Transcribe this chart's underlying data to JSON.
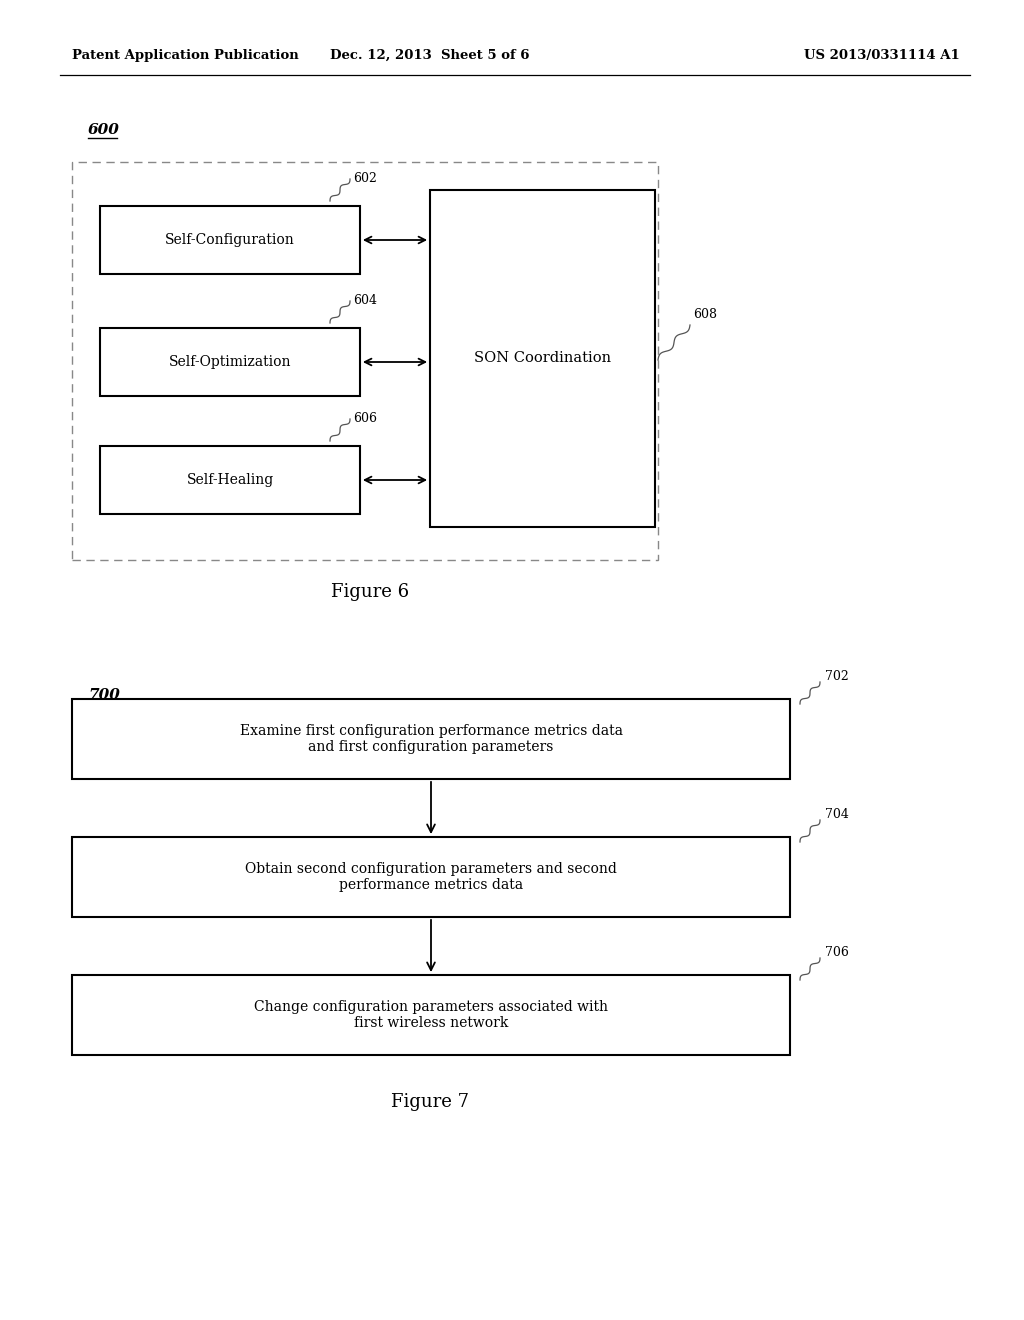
{
  "bg_color": "#ffffff",
  "header_left": "Patent Application Publication",
  "header_mid": "Dec. 12, 2013  Sheet 5 of 6",
  "header_right": "US 2013/0331114 A1",
  "fig6_label": "600",
  "fig6_caption": "Figure 6",
  "fig6_son_label": "SON Coordination",
  "fig6_ref_608": "608",
  "fig6_boxes": [
    {
      "label": "Self-Configuration",
      "ref": "602"
    },
    {
      "label": "Self-Optimization",
      "ref": "604"
    },
    {
      "label": "Self-Healing",
      "ref": "606"
    }
  ],
  "fig7_label": "700",
  "fig7_caption": "Figure 7",
  "fig7_boxes": [
    {
      "label": "Examine first configuration performance metrics data\nand first configuration parameters",
      "ref": "702"
    },
    {
      "label": "Obtain second configuration parameters and second\nperformance metrics data",
      "ref": "704"
    },
    {
      "label": "Change configuration parameters associated with\nfirst wireless network",
      "ref": "706"
    }
  ]
}
